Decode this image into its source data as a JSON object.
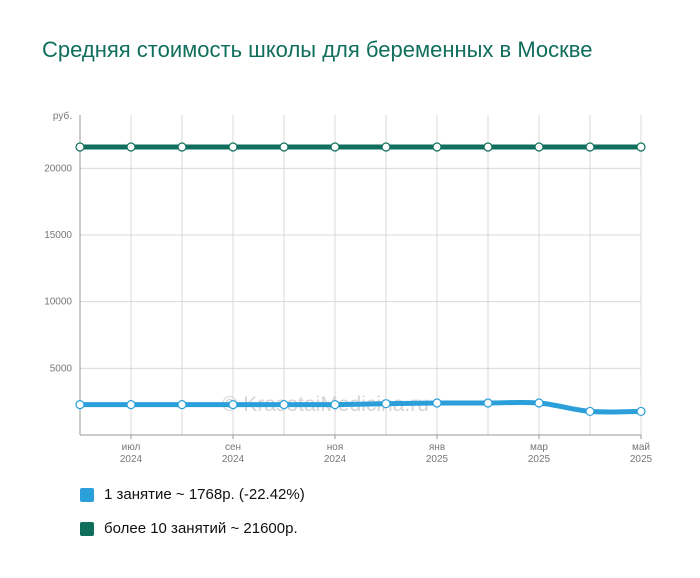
{
  "title": "Средняя стоимость школы для беременных  в Москве",
  "watermark": "© KrasotaiMedicina.ru",
  "colors": {
    "series1": "#2a9fd9",
    "series2": "#0f6e5c",
    "grid": "#d8d8d8",
    "title": "#0f6e5c"
  },
  "legend": [
    {
      "label": "1 занятие ~ 1768р. (-22.42%)",
      "color": "#2a9fd9"
    },
    {
      "label": "более 10 занятий ~ 21600р.",
      "color": "#0f6e5c"
    }
  ],
  "chart_data": {
    "type": "line",
    "title": "Средняя стоимость школы для беременных  в Москве",
    "y_unit_label": "руб.",
    "ylim": [
      0,
      24000
    ],
    "yticks": [
      5000,
      10000,
      15000,
      20000
    ],
    "xticks": [
      {
        "month": "июл",
        "year": "2024"
      },
      {
        "month": "сен",
        "year": "2024"
      },
      {
        "month": "ноя",
        "year": "2024"
      },
      {
        "month": "янв",
        "year": "2025"
      },
      {
        "month": "мар",
        "year": "2025"
      },
      {
        "month": "май",
        "year": "2025"
      }
    ],
    "x": [
      "2024-06",
      "2024-07",
      "2024-08",
      "2024-09",
      "2024-10",
      "2024-11",
      "2024-12",
      "2025-01",
      "2025-02",
      "2025-03",
      "2025-04",
      "2025-05"
    ],
    "series": [
      {
        "name": "1 занятие",
        "values": [
          2279,
          2279,
          2279,
          2279,
          2279,
          2279,
          2350,
          2400,
          2400,
          2400,
          1768,
          1768
        ]
      },
      {
        "name": "более 10 занятий",
        "values": [
          21600,
          21600,
          21600,
          21600,
          21600,
          21600,
          21600,
          21600,
          21600,
          21600,
          21600,
          21600
        ]
      }
    ],
    "grid": true,
    "legend_position": "bottom-left"
  }
}
